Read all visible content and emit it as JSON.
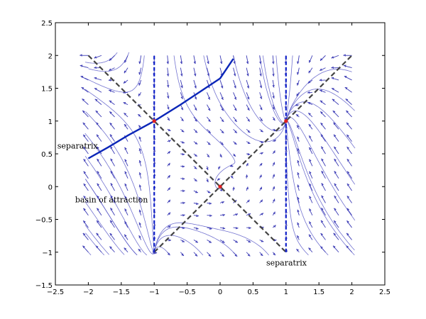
{
  "chart_data": {
    "type": "phase-portrait",
    "xlim": [
      -2.5,
      2.5
    ],
    "ylim": [
      -1.5,
      2.5
    ],
    "field_region": {
      "x": [
        -2,
        2
      ],
      "y": [
        -1,
        2
      ]
    },
    "xticks": [
      -2.5,
      -2,
      -1.5,
      -1,
      -0.5,
      0,
      0.5,
      1,
      1.5,
      2,
      2.5
    ],
    "yticks": [
      -1.5,
      -1,
      -0.5,
      0,
      0.5,
      1,
      1.5,
      2,
      2.5
    ],
    "xtick_labels": [
      "−2.5",
      "−2",
      "−1.5",
      "−1",
      "−0.5",
      "0",
      "0.5",
      "1",
      "1.5",
      "2",
      "2.5"
    ],
    "ytick_labels": [
      "−1.5",
      "−1",
      "−0.5",
      "0",
      "0.5",
      "1",
      "1.5",
      "2",
      "2.5"
    ],
    "equilibria": [
      {
        "x": -1,
        "y": 1
      },
      {
        "x": 0,
        "y": 0
      },
      {
        "x": 1,
        "y": 1
      }
    ],
    "nullclines_dashed_black": [
      {
        "points": [
          [
            -2,
            2
          ],
          [
            1,
            -1
          ]
        ]
      },
      {
        "points": [
          [
            -1,
            -1
          ],
          [
            2,
            2
          ]
        ]
      }
    ],
    "nullclines_dashed_blue": [
      {
        "points": [
          [
            -1,
            -1
          ],
          [
            -1,
            2
          ]
        ]
      },
      {
        "points": [
          [
            1,
            -1
          ],
          [
            1,
            2
          ]
        ]
      }
    ],
    "separatrix_curve": [
      [
        -2,
        0.43
      ],
      [
        -1.7,
        0.6
      ],
      [
        -1.4,
        0.78
      ],
      [
        -1,
        1
      ],
      [
        -0.6,
        1.25
      ],
      [
        -0.3,
        1.45
      ],
      [
        0,
        1.65
      ],
      [
        0.2,
        1.95
      ]
    ],
    "annotations": [
      {
        "text": "separatrix",
        "x": -2.47,
        "y": 0.58
      },
      {
        "text": "basin of attraction",
        "x": -2.2,
        "y": -0.24
      },
      {
        "text": "separatrix",
        "x": 0.7,
        "y": -1.2
      }
    ],
    "colors": {
      "arrows": "#3b3bb5",
      "streamlines": "#5a5ac8",
      "separatrix": "#0b26b8",
      "dashed_vertical": "#1020c8",
      "dashed_diagonal": "#444444",
      "equilibrium": "#e02020"
    }
  }
}
